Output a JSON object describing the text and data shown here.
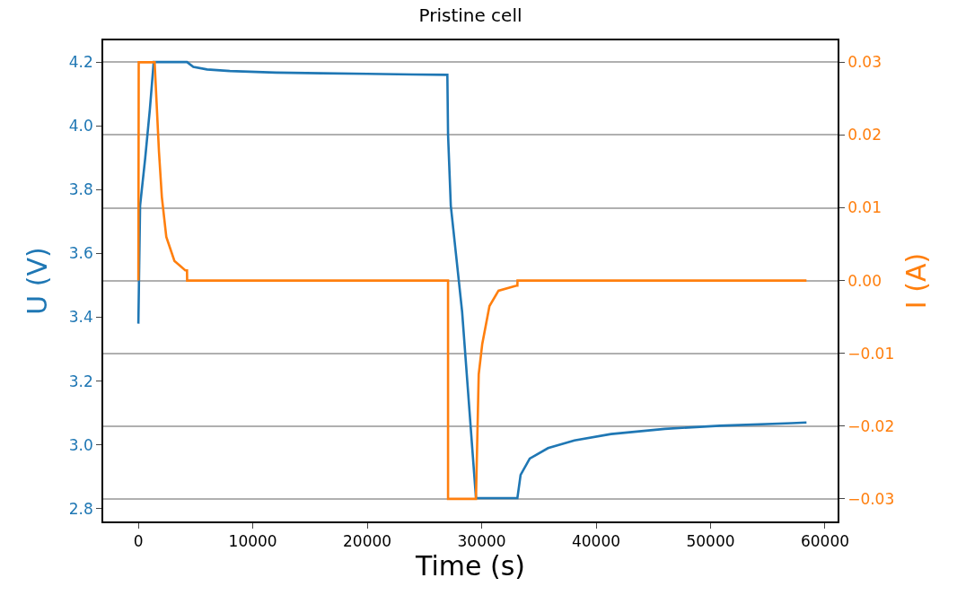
{
  "chart_data": {
    "type": "line",
    "title": "Pristine cell",
    "xlabel": "Time (s)",
    "ylabel": "U (V)",
    "y2label": "I (A)",
    "xlim": [
      -3070,
      61100
    ],
    "xticks": [
      0,
      10000,
      20000,
      30000,
      40000,
      50000,
      60000
    ],
    "ylim": [
      2.76,
      4.268
    ],
    "yticks": [
      {
        "value": 2.8,
        "label": "2.8"
      },
      {
        "value": 3.0,
        "label": "3.0"
      },
      {
        "value": 3.2,
        "label": "3.2"
      },
      {
        "value": 3.4,
        "label": "3.4"
      },
      {
        "value": 3.6,
        "label": "3.6"
      },
      {
        "value": 3.8,
        "label": "3.8"
      },
      {
        "value": 4.0,
        "label": "4.0"
      },
      {
        "value": 4.2,
        "label": "4.2"
      }
    ],
    "y2lim": [
      -0.0331,
      0.033
    ],
    "y2ticks": [
      {
        "value": -0.03,
        "label": "−0.03"
      },
      {
        "value": -0.02,
        "label": "−0.02"
      },
      {
        "value": -0.01,
        "label": "−0.01"
      },
      {
        "value": 0,
        "label": "0.00"
      },
      {
        "value": 0.01,
        "label": "0.01"
      },
      {
        "value": 0.02,
        "label": "0.02"
      },
      {
        "value": 0.03,
        "label": "0.03"
      }
    ],
    "grid": "y",
    "series": [
      {
        "color": "#1f77b4",
        "x": [
          0,
          150,
          600,
          1000,
          1340,
          4250,
          4800,
          6000,
          8000,
          12000,
          16000,
          20000,
          24000,
          27000,
          27060,
          27300,
          28290,
          29500,
          33120,
          33400,
          34200,
          35800,
          38100,
          41300,
          46000,
          50800,
          57100,
          58380
        ],
        "values": [
          3.38,
          3.75,
          3.9,
          4.05,
          4.2,
          4.2,
          4.185,
          4.177,
          4.172,
          4.167,
          4.165,
          4.163,
          4.161,
          4.16,
          3.973,
          3.75,
          3.417,
          2.833,
          2.833,
          2.906,
          2.957,
          2.99,
          3.014,
          3.034,
          3.05,
          3.06,
          3.068,
          3.07
        ]
      },
      {
        "color": "#ff7f0e",
        "axis": "y2",
        "x": [
          0,
          30,
          1420,
          1800,
          2050,
          2440,
          3150,
          4100,
          4250,
          4260,
          27060,
          27061,
          29500,
          29740,
          30050,
          30680,
          31470,
          33040,
          33120,
          33130,
          58380
        ],
        "values": [
          0,
          0.03,
          0.03,
          0.0177,
          0.0115,
          0.006,
          0.0027,
          0.0014,
          0.0014,
          0,
          0,
          -0.03,
          -0.03,
          -0.0129,
          -0.0087,
          -0.0035,
          -0.0014,
          -0.0007,
          -0.0007,
          0,
          0
        ]
      }
    ]
  }
}
